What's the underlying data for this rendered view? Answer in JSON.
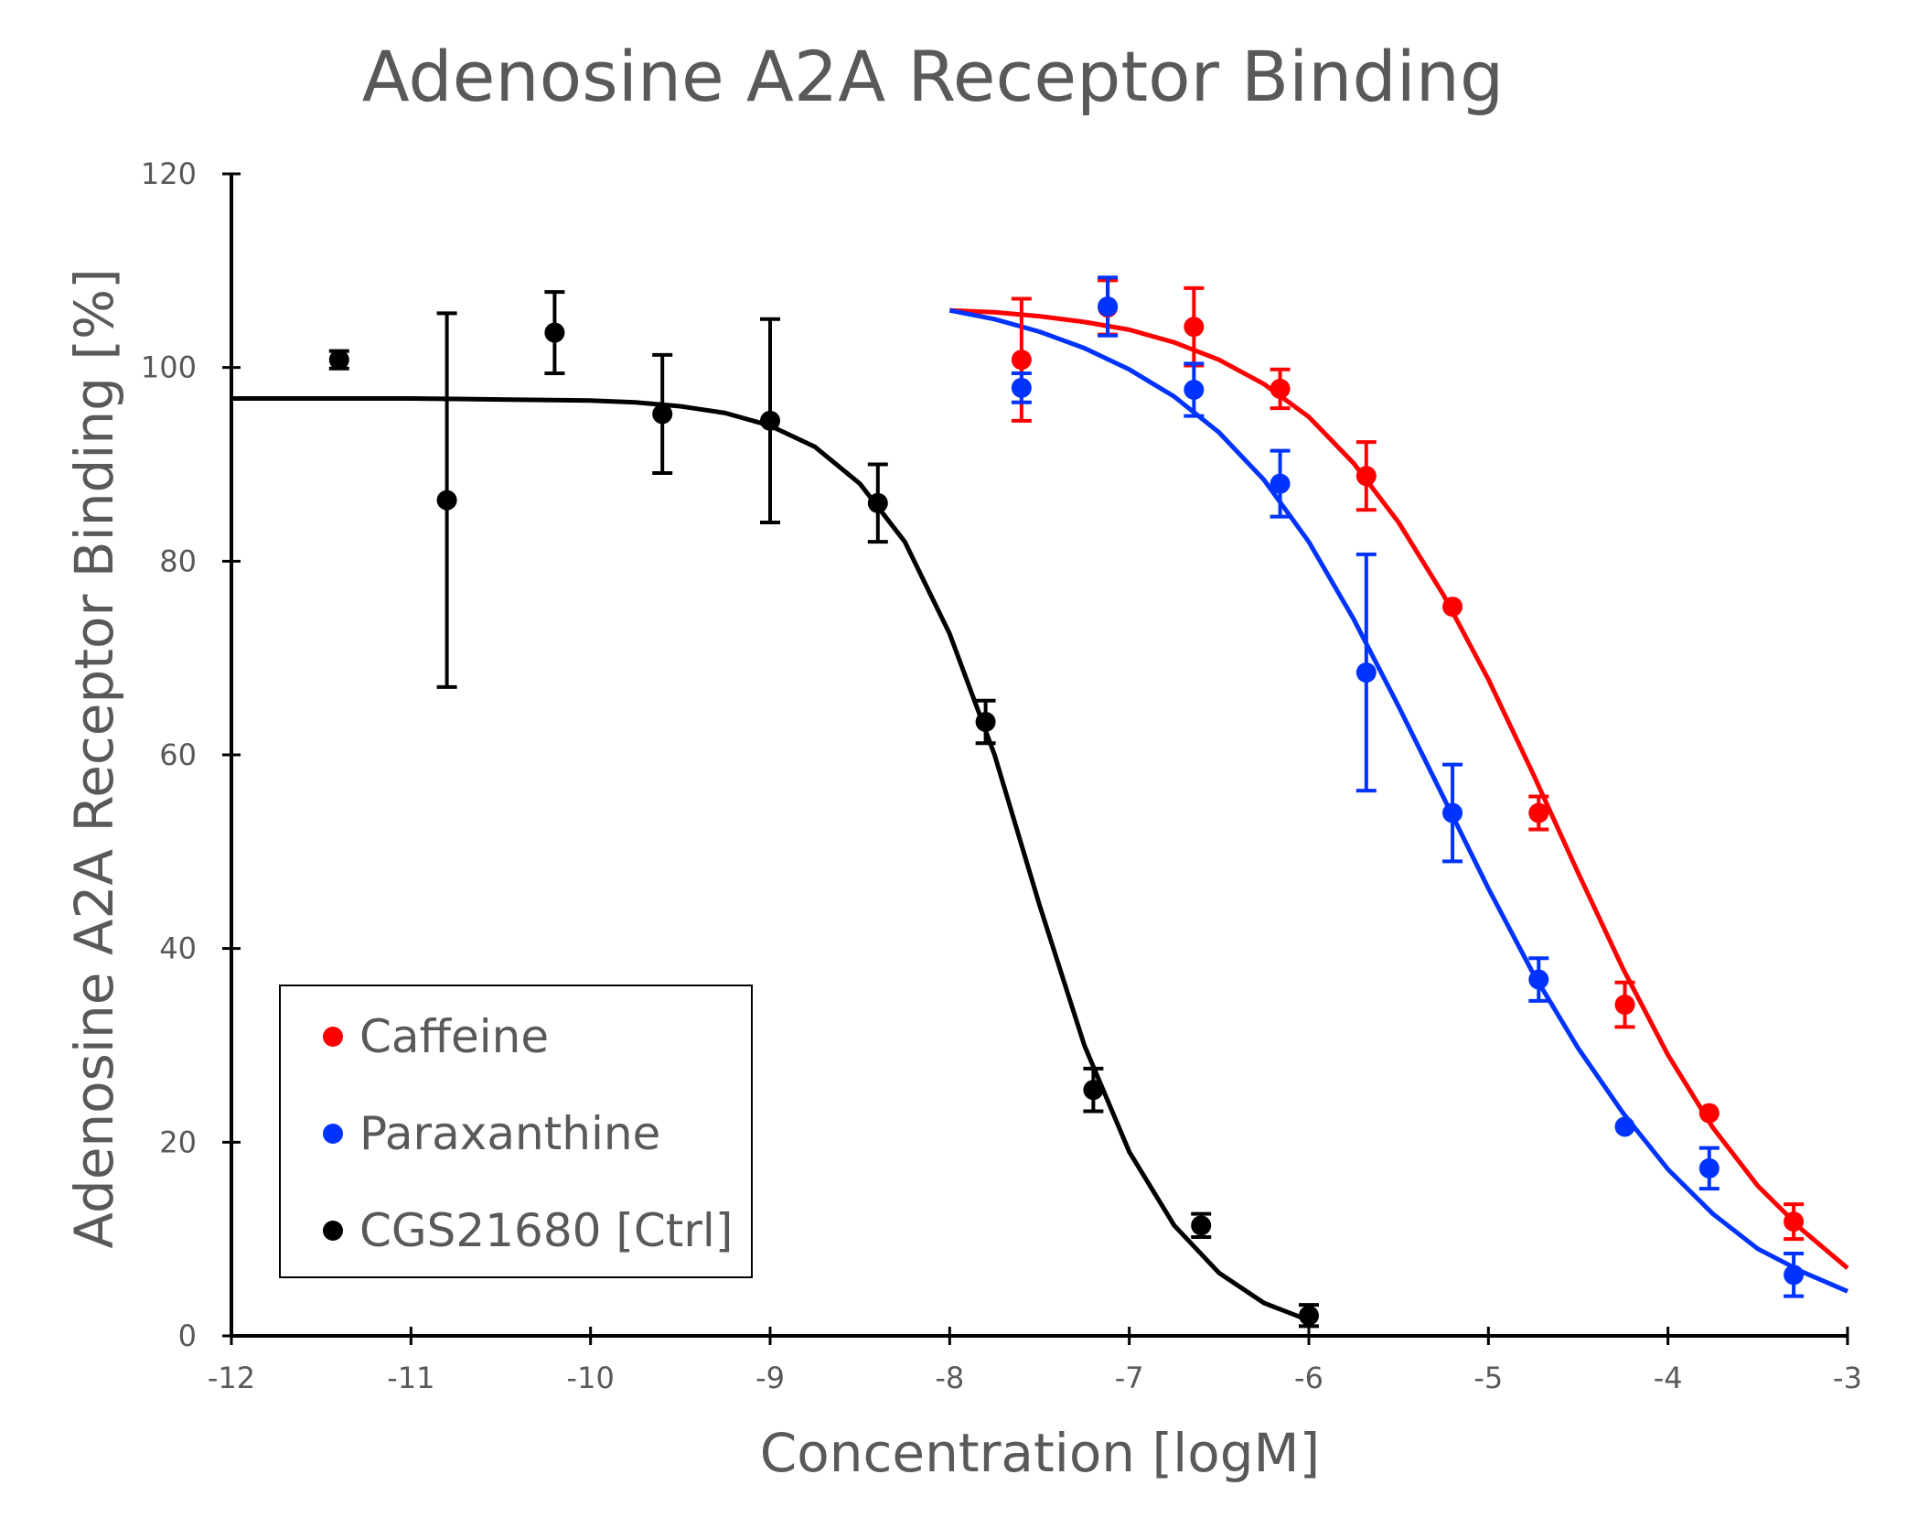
{
  "chart_data": {
    "type": "scatter",
    "title": "Adenosine A2A Receptor Binding",
    "xlabel": "Concentration [logM]",
    "ylabel": "Adenosine A2A Receptor Binding [%]",
    "xlim": [
      -12,
      -3
    ],
    "ylim": [
      0,
      120
    ],
    "xticks": [
      -12,
      -11,
      -10,
      -9,
      -8,
      -7,
      -6,
      -5,
      -4,
      -3
    ],
    "yticks": [
      0,
      20,
      40,
      60,
      80,
      100,
      120
    ],
    "grid": false,
    "legend_position": "bottom-left",
    "series": [
      {
        "name": "Caffeine",
        "color": "#ff0000",
        "points": [
          {
            "x": -7.6,
            "y": 100.8,
            "err": 6.3
          },
          {
            "x": -7.12,
            "y": 106.2,
            "err": 2.8
          },
          {
            "x": -6.64,
            "y": 104.2,
            "err": 4.0
          },
          {
            "x": -6.16,
            "y": 97.8,
            "err": 2.0
          },
          {
            "x": -5.68,
            "y": 88.8,
            "err": 3.5
          },
          {
            "x": -5.2,
            "y": 75.3,
            "err": 0
          },
          {
            "x": -4.72,
            "y": 54.0,
            "err": 1.7
          },
          {
            "x": -4.24,
            "y": 34.2,
            "err": 2.3
          },
          {
            "x": -3.77,
            "y": 23.0,
            "err": 0
          },
          {
            "x": -3.3,
            "y": 11.8,
            "err": 1.8
          }
        ],
        "curve": [
          {
            "x": -8.0,
            "y": 105.9
          },
          {
            "x": -7.75,
            "y": 105.7
          },
          {
            "x": -7.5,
            "y": 105.3
          },
          {
            "x": -7.25,
            "y": 104.7
          },
          {
            "x": -7.0,
            "y": 103.9
          },
          {
            "x": -6.75,
            "y": 102.6
          },
          {
            "x": -6.5,
            "y": 100.8
          },
          {
            "x": -6.25,
            "y": 98.3
          },
          {
            "x": -6.0,
            "y": 94.9
          },
          {
            "x": -5.75,
            "y": 90.1
          },
          {
            "x": -5.5,
            "y": 84.0
          },
          {
            "x": -5.25,
            "y": 76.5
          },
          {
            "x": -5.0,
            "y": 67.8
          },
          {
            "x": -4.75,
            "y": 58.0
          },
          {
            "x": -4.5,
            "y": 47.8
          },
          {
            "x": -4.25,
            "y": 37.9
          },
          {
            "x": -4.0,
            "y": 29.0
          },
          {
            "x": -3.75,
            "y": 21.5
          },
          {
            "x": -3.5,
            "y": 15.5
          },
          {
            "x": -3.25,
            "y": 10.9
          },
          {
            "x": -3.0,
            "y": 7.0
          }
        ]
      },
      {
        "name": "Paraxanthine",
        "color": "#0033ff",
        "points": [
          {
            "x": -7.6,
            "y": 97.9,
            "err": 1.5
          },
          {
            "x": -7.12,
            "y": 106.3,
            "err": 3.0
          },
          {
            "x": -6.64,
            "y": 97.7,
            "err": 2.7
          },
          {
            "x": -6.16,
            "y": 88.0,
            "err": 3.4
          },
          {
            "x": -5.68,
            "y": 68.5,
            "err": 12.2
          },
          {
            "x": -5.2,
            "y": 54.0,
            "err": 5.0
          },
          {
            "x": -4.72,
            "y": 36.8,
            "err": 2.2
          },
          {
            "x": -4.24,
            "y": 21.6,
            "err": 0
          },
          {
            "x": -3.77,
            "y": 17.3,
            "err": 2.1
          },
          {
            "x": -3.3,
            "y": 6.3,
            "err": 2.2
          }
        ],
        "curve": [
          {
            "x": -8.0,
            "y": 105.9
          },
          {
            "x": -7.75,
            "y": 105.0
          },
          {
            "x": -7.5,
            "y": 103.7
          },
          {
            "x": -7.25,
            "y": 102.0
          },
          {
            "x": -7.0,
            "y": 99.8
          },
          {
            "x": -6.75,
            "y": 97.0
          },
          {
            "x": -6.5,
            "y": 93.3
          },
          {
            "x": -6.25,
            "y": 88.4
          },
          {
            "x": -6.0,
            "y": 82.0
          },
          {
            "x": -5.75,
            "y": 74.0
          },
          {
            "x": -5.5,
            "y": 65.0
          },
          {
            "x": -5.25,
            "y": 55.6
          },
          {
            "x": -5.0,
            "y": 46.2
          },
          {
            "x": -4.75,
            "y": 37.4
          },
          {
            "x": -4.5,
            "y": 29.7
          },
          {
            "x": -4.25,
            "y": 23.0
          },
          {
            "x": -4.0,
            "y": 17.2
          },
          {
            "x": -3.75,
            "y": 12.6
          },
          {
            "x": -3.5,
            "y": 9.0
          },
          {
            "x": -3.25,
            "y": 6.6
          },
          {
            "x": -3.0,
            "y": 4.6
          }
        ]
      },
      {
        "name": "CGS21680 [Ctrl]",
        "color": "#000000",
        "points": [
          {
            "x": -11.4,
            "y": 100.8,
            "err": 0.9
          },
          {
            "x": -10.8,
            "y": 86.3,
            "err": 19.3
          },
          {
            "x": -10.2,
            "y": 103.6,
            "err": 4.2
          },
          {
            "x": -9.6,
            "y": 95.2,
            "err": 6.1
          },
          {
            "x": -9.0,
            "y": 94.5,
            "err": 10.5
          },
          {
            "x": -8.4,
            "y": 86.0,
            "err": 4.0
          },
          {
            "x": -7.8,
            "y": 63.4,
            "err": 2.2
          },
          {
            "x": -7.2,
            "y": 25.4,
            "err": 2.2
          },
          {
            "x": -6.6,
            "y": 11.4,
            "err": 1.2
          },
          {
            "x": -6.0,
            "y": 2.1,
            "err": 1.1
          }
        ],
        "curve": [
          {
            "x": -12.0,
            "y": 96.8
          },
          {
            "x": -11.5,
            "y": 96.8
          },
          {
            "x": -11.0,
            "y": 96.8
          },
          {
            "x": -10.5,
            "y": 96.7
          },
          {
            "x": -10.0,
            "y": 96.6
          },
          {
            "x": -9.75,
            "y": 96.4
          },
          {
            "x": -9.5,
            "y": 96.0
          },
          {
            "x": -9.25,
            "y": 95.3
          },
          {
            "x": -9.0,
            "y": 94.0
          },
          {
            "x": -8.75,
            "y": 91.8
          },
          {
            "x": -8.5,
            "y": 88.0
          },
          {
            "x": -8.25,
            "y": 82.0
          },
          {
            "x": -8.0,
            "y": 72.5
          },
          {
            "x": -7.75,
            "y": 60.0
          },
          {
            "x": -7.5,
            "y": 44.5
          },
          {
            "x": -7.25,
            "y": 30.0
          },
          {
            "x": -7.0,
            "y": 19.0
          },
          {
            "x": -6.75,
            "y": 11.4
          },
          {
            "x": -6.5,
            "y": 6.5
          },
          {
            "x": -6.25,
            "y": 3.4
          },
          {
            "x": -6.0,
            "y": 1.6
          }
        ]
      }
    ]
  }
}
